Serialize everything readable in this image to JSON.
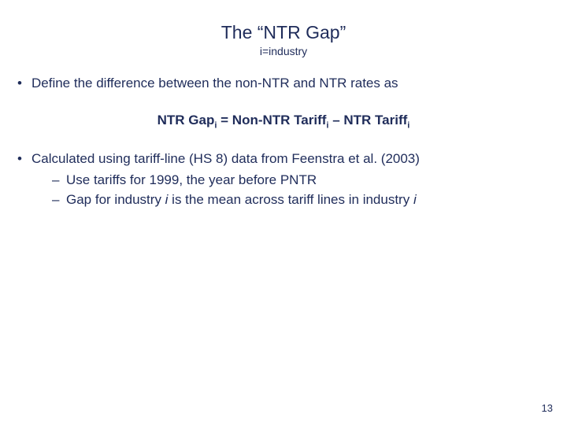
{
  "title": "The “NTR Gap”",
  "subtitle": "i=industry",
  "bullet1": "Define the difference between the non-NTR and NTR rates as",
  "formula": {
    "lhs": "NTR Gap",
    "sub": "i",
    "eq": " = Non-NTR Tariff",
    "sub2": "i",
    "minus": " – NTR Tariff",
    "sub3": "i"
  },
  "bullet2": "Calculated using tariff-line (HS 8) data from Feenstra et al. (2003)",
  "dash1": "Use tariffs for 1999, the year before PNTR",
  "dash2_pre": "Gap for industry ",
  "dash2_i1": "i",
  "dash2_mid": " is the mean across tariff lines in industry ",
  "dash2_i2": "i",
  "pageNumber": "13",
  "colors": {
    "text": "#1f2c5a",
    "background": "#ffffff"
  },
  "fontsize": {
    "title": 23,
    "subtitle": 14,
    "body": 17,
    "pagenum": 13
  }
}
